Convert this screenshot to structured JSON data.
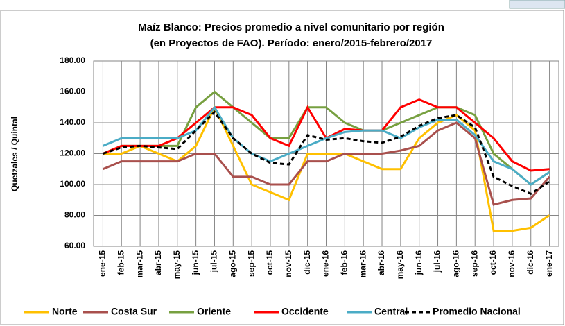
{
  "chart_data": {
    "type": "line",
    "title": "Maíz Blanco: Precios promedio a nivel comunitario por región",
    "subtitle": "(en Proyectos de FAO). Período: enero/2015-febrero/2017",
    "y_label": "Quetzales / Quintal",
    "categories": [
      "ene-15",
      "feb-15",
      "mar-15",
      "abr-15",
      "may-15",
      "jun-15",
      "jul-15",
      "ago-15",
      "sep-15",
      "oct-15",
      "nov-15",
      "dic-15",
      "ene-16",
      "feb-16",
      "mar-16",
      "abr-16",
      "may-16",
      "jun-16",
      "jul-16",
      "ago-16",
      "sep-16",
      "oct-16",
      "nov-16",
      "dic-16",
      "ene-17"
    ],
    "ylim": [
      60,
      180
    ],
    "yticks": [
      {
        "value": 60,
        "label": "60.00"
      },
      {
        "value": 80,
        "label": "80.00"
      },
      {
        "value": 100,
        "label": "100.00"
      },
      {
        "value": 120,
        "label": "120.00"
      },
      {
        "value": 140,
        "label": "140.00"
      },
      {
        "value": 160,
        "label": "160.00"
      },
      {
        "value": 180,
        "label": "180.00"
      }
    ],
    "grid": true,
    "series": [
      {
        "name": "Norte",
        "color": "#ffc000",
        "values": [
          120,
          120,
          125,
          120,
          115,
          125,
          150,
          125,
          100,
          95,
          90,
          120,
          120,
          120,
          115,
          110,
          110,
          130,
          140,
          145,
          135,
          70,
          70,
          72,
          80
        ]
      },
      {
        "name": "Costa Sur",
        "color": "#a9504d",
        "values": [
          110,
          115,
          115,
          115,
          115,
          120,
          120,
          105,
          105,
          100,
          100,
          115,
          115,
          120,
          120,
          120,
          122,
          125,
          135,
          140,
          130,
          87,
          90,
          91,
          105
        ]
      },
      {
        "name": "Oriente",
        "color": "#77a040",
        "values": [
          120,
          125,
          125,
          125,
          125,
          150,
          160,
          150,
          140,
          130,
          130,
          150,
          150,
          140,
          135,
          135,
          140,
          145,
          150,
          150,
          145,
          120,
          110,
          100,
          108
        ]
      },
      {
        "name": "Occidente",
        "color": "#ff0000",
        "values": [
          120,
          125,
          125,
          125,
          130,
          140,
          150,
          150,
          145,
          130,
          125,
          150,
          130,
          136,
          135,
          135,
          150,
          155,
          150,
          150,
          140,
          130,
          115,
          109,
          110
        ]
      },
      {
        "name": "Central",
        "color": "#4bacc6",
        "values": [
          125,
          130,
          130,
          130,
          130,
          135,
          150,
          130,
          120,
          115,
          120,
          125,
          130,
          134,
          135,
          135,
          130,
          137,
          142,
          142,
          132,
          115,
          110,
          100,
          108
        ]
      },
      {
        "name": "Promedio Nacional",
        "color": "#000000",
        "style": "dashed",
        "values": [
          120,
          124,
          125,
          124,
          123,
          135,
          147,
          130,
          120,
          114,
          113,
          132,
          129,
          130,
          128,
          127,
          131,
          138,
          143,
          145,
          137,
          105,
          99,
          94,
          102
        ]
      }
    ]
  }
}
